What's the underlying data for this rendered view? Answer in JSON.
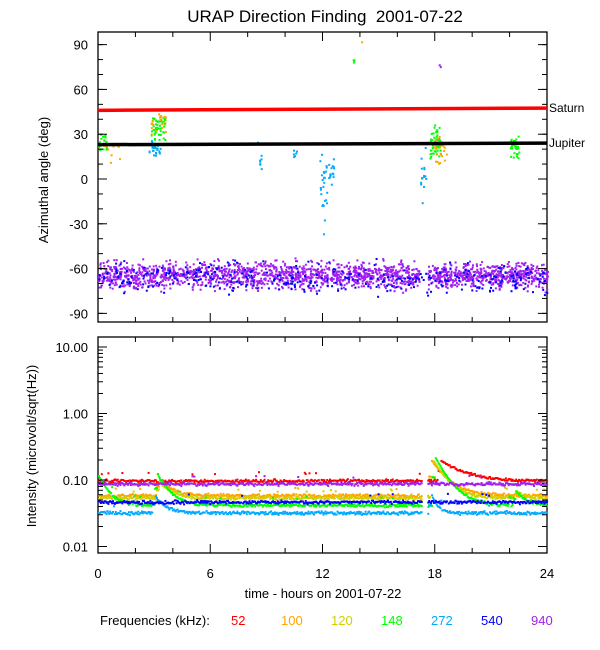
{
  "chart_data": [
    {
      "type": "scatter",
      "title": "URAP Direction Finding  2001-07-22",
      "ylabel": "Azimuthal angle (deg)",
      "xlim": [
        0,
        24
      ],
      "ylim": [
        -90,
        95
      ],
      "yticks": [
        "90",
        "60",
        "30",
        "0",
        "-30",
        "-60",
        "-90"
      ],
      "ytick_values": [
        90,
        60,
        30,
        0,
        -30,
        -60,
        -90
      ],
      "reference_lines": [
        {
          "label": "Saturn",
          "y_start": 46,
          "y_end": 47.5,
          "color": "#ff0000"
        },
        {
          "label": "Jupiter",
          "y_start": 23,
          "y_end": 24,
          "color": "#000000"
        }
      ],
      "clusters": [
        {
          "freq": "940",
          "t": [
            0,
            17.2
          ],
          "mean": -64,
          "spread": 6,
          "n": 1400
        },
        {
          "freq": "940",
          "t": [
            17.6,
            24
          ],
          "mean": -64,
          "spread": 6,
          "n": 550
        },
        {
          "freq": "540",
          "t": [
            0,
            24
          ],
          "mean": -66,
          "spread": 7,
          "n": 350
        },
        {
          "freq": "148",
          "t": [
            0,
            0.5
          ],
          "mean": 25,
          "spread": 4,
          "n": 25
        },
        {
          "freq": "100",
          "t": [
            0.3,
            1.2
          ],
          "mean": 18,
          "spread": 6,
          "n": 10
        },
        {
          "freq": "148",
          "t": [
            2.8,
            3.6
          ],
          "mean": 35,
          "spread": 6,
          "n": 50
        },
        {
          "freq": "100",
          "t": [
            2.8,
            3.6
          ],
          "mean": 38,
          "spread": 5,
          "n": 20
        },
        {
          "freq": "272",
          "t": [
            2.7,
            3.3
          ],
          "mean": 21,
          "spread": 3,
          "n": 30
        },
        {
          "freq": "272",
          "t": [
            8.5,
            8.7
          ],
          "mean": 10,
          "spread": 10,
          "n": 8
        },
        {
          "freq": "272",
          "t": [
            10.4,
            10.6
          ],
          "mean": 13,
          "spread": 5,
          "n": 6
        },
        {
          "freq": "272",
          "t": [
            11.8,
            12.2
          ],
          "mean": -3,
          "spread": 20,
          "n": 25
        },
        {
          "freq": "272",
          "t": [
            12.3,
            12.6
          ],
          "mean": 5,
          "spread": 8,
          "n": 15
        },
        {
          "freq": "272",
          "t": [
            17.2,
            17.5
          ],
          "mean": 5,
          "spread": 12,
          "n": 15
        },
        {
          "freq": "148",
          "t": [
            17.7,
            18.3
          ],
          "mean": 25,
          "spread": 7,
          "n": 60
        },
        {
          "freq": "100",
          "t": [
            17.9,
            18.6
          ],
          "mean": 20,
          "spread": 7,
          "n": 25
        },
        {
          "freq": "148",
          "t": [
            22.0,
            22.5
          ],
          "mean": 22,
          "spread": 5,
          "n": 35
        },
        {
          "freq": "148",
          "t": [
            13.6,
            13.7
          ],
          "mean": 80,
          "spread": 1,
          "n": 3
        },
        {
          "freq": "940",
          "t": [
            18.2,
            18.3
          ],
          "mean": 76,
          "spread": 1,
          "n": 2
        },
        {
          "freq": "100",
          "t": [
            14,
            14.1
          ],
          "mean": 92,
          "spread": 1,
          "n": 1
        }
      ]
    },
    {
      "type": "line",
      "ylabel": "Intensity (microvolt/sqrt(Hz))",
      "xlabel": "time - hours on 2001-07-22",
      "xlim": [
        0,
        24
      ],
      "ylim": [
        0.01,
        10
      ],
      "yscale": "log",
      "yticks": [
        "10.00",
        "1.00",
        "0.10",
        "0.01"
      ],
      "ytick_values": [
        10,
        1,
        0.1,
        0.01
      ],
      "xticks": [
        "0",
        "6",
        "12",
        "18",
        "24"
      ],
      "xtick_values": [
        0,
        6,
        12,
        18,
        24
      ],
      "gap": [
        17.3,
        17.6
      ],
      "series": [
        {
          "name": "52",
          "color": "#ff0000",
          "base": 0.1,
          "bursts": [
            [
              18.3,
              0.2,
              1.2
            ]
          ]
        },
        {
          "name": "100",
          "color": "#ffa500",
          "base": 0.06,
          "bursts": [
            [
              3.2,
              0.11,
              0.6
            ],
            [
              17.8,
              0.2,
              0.8
            ]
          ]
        },
        {
          "name": "120",
          "color": "#d0d000",
          "base": 0.055,
          "bursts": [
            [
              3.2,
              0.1,
              0.6
            ],
            [
              17.9,
              0.2,
              0.7
            ],
            [
              22.3,
              0.07,
              0.4
            ]
          ]
        },
        {
          "name": "148",
          "color": "#00ff00",
          "base": 0.043,
          "bursts": [
            [
              0,
              0.12,
              0.5
            ],
            [
              3.1,
              0.13,
              0.6
            ],
            [
              18.0,
              0.22,
              0.7
            ],
            [
              22.3,
              0.07,
              0.5
            ]
          ]
        },
        {
          "name": "272",
          "color": "#00aaff",
          "base": 0.033,
          "bursts": [
            [
              3.0,
              0.06,
              0.5
            ],
            [
              17.8,
              0.06,
              0.3
            ]
          ]
        },
        {
          "name": "540",
          "color": "#0000ff",
          "base": 0.048,
          "bursts": []
        },
        {
          "name": "940",
          "color": "#a020f0",
          "base": 0.09,
          "bursts": []
        }
      ]
    }
  ],
  "legend": {
    "label": "Frequencies (kHz):",
    "items": [
      {
        "name": "52",
        "color": "#ff0000"
      },
      {
        "name": "100",
        "color": "#ffa500"
      },
      {
        "name": "120",
        "color": "#d0d000"
      },
      {
        "name": "148",
        "color": "#00ff00"
      },
      {
        "name": "272",
        "color": "#00aaff"
      },
      {
        "name": "540",
        "color": "#0000ff"
      },
      {
        "name": "940",
        "color": "#a020f0"
      }
    ]
  }
}
